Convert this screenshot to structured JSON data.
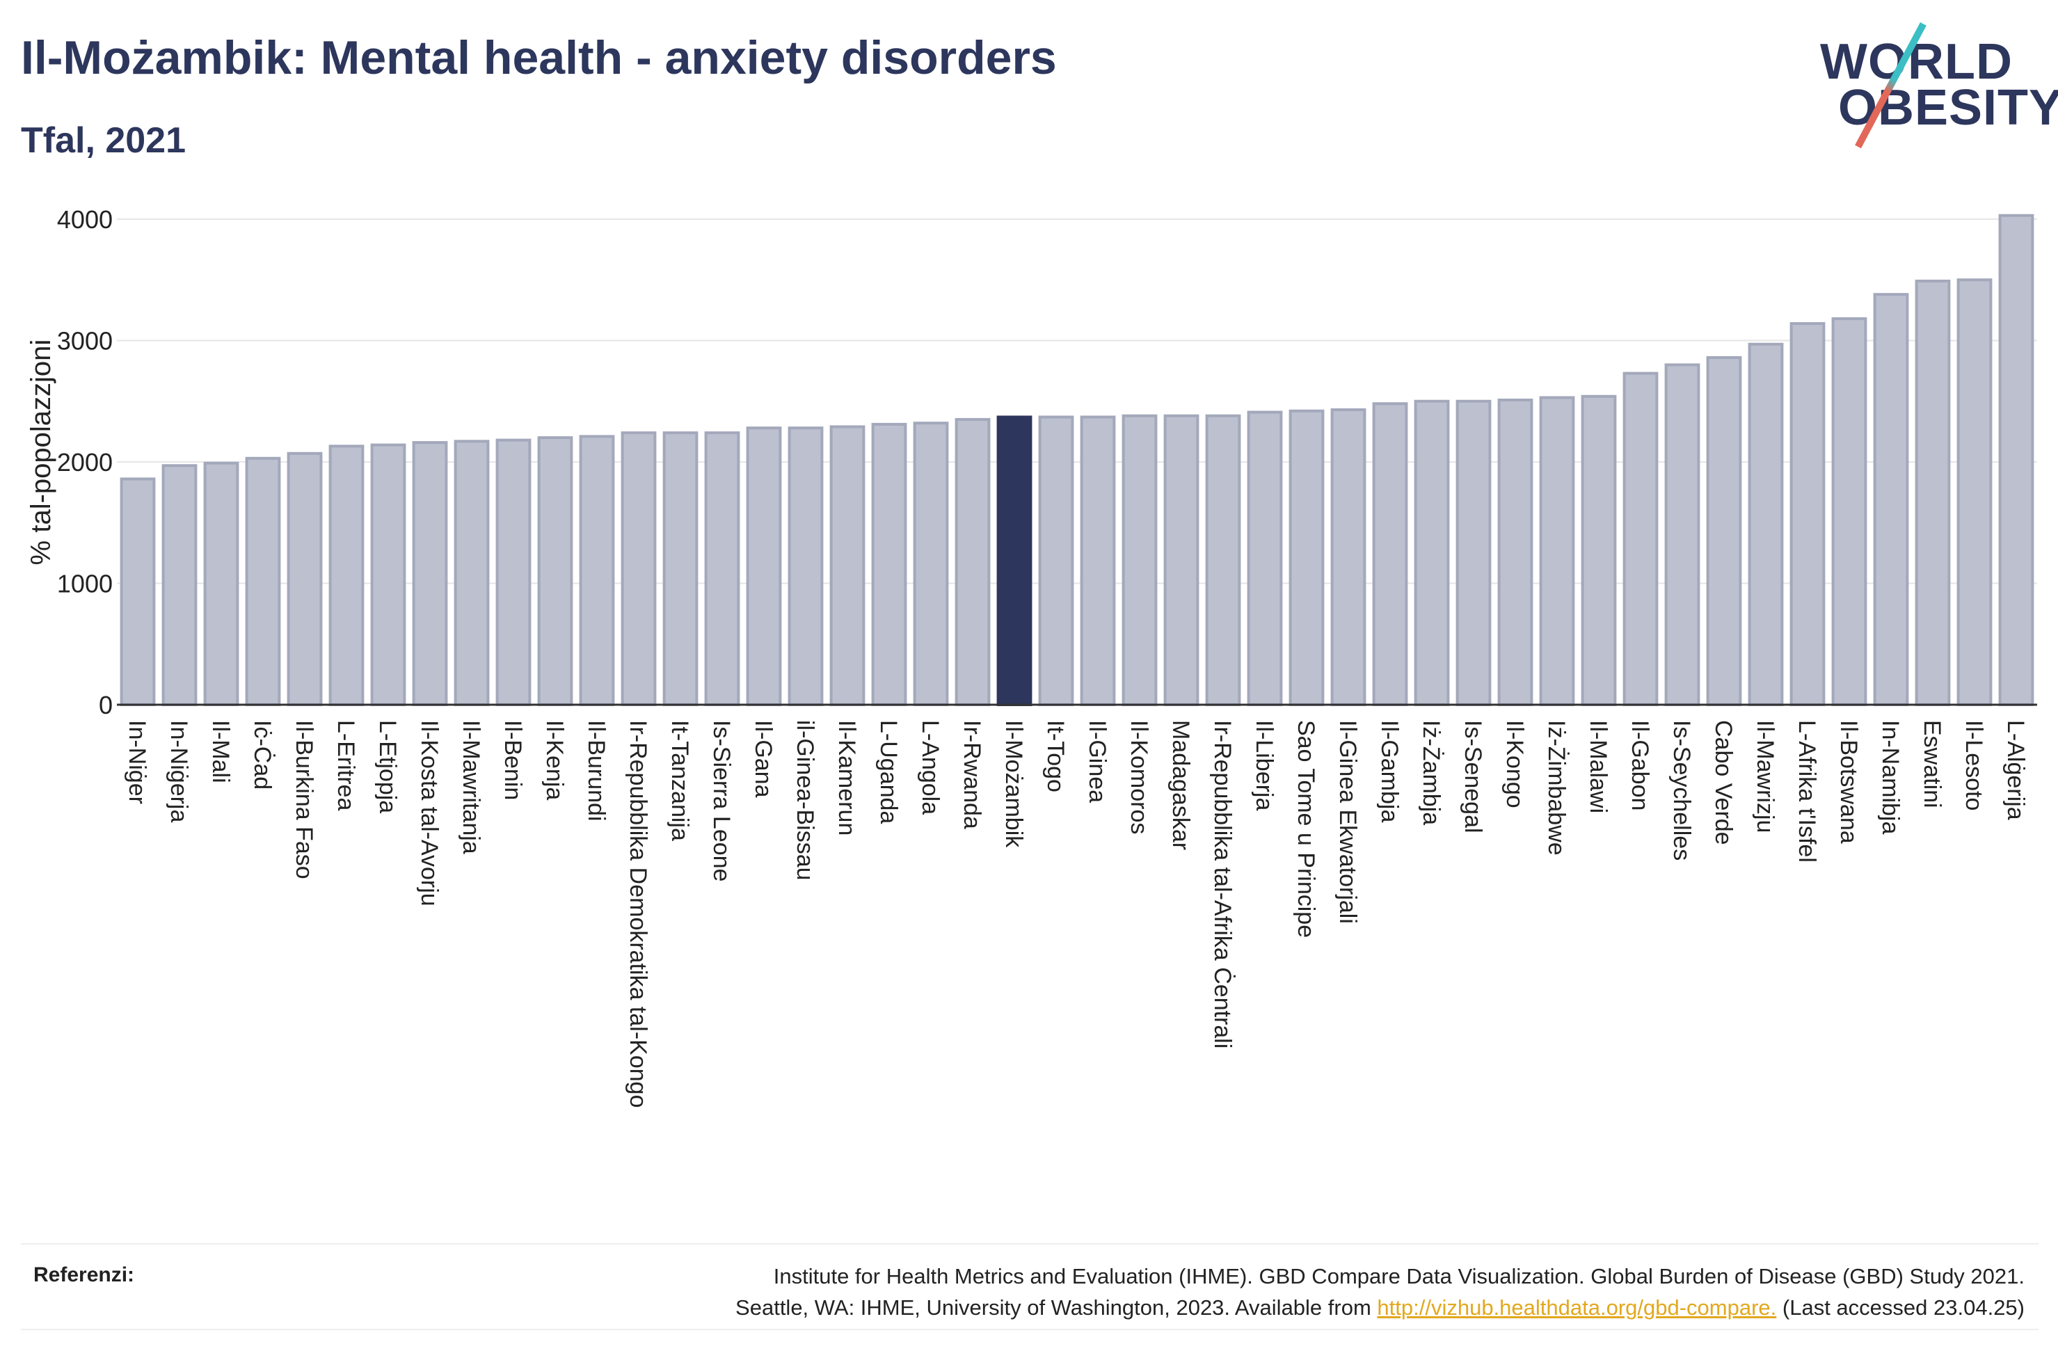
{
  "header": {
    "title": "Il-Możambik: Mental health - anxiety disorders",
    "subtitle": "Tfal, 2021"
  },
  "logo": {
    "line1": "WORLD",
    "line2": "OBESITY"
  },
  "colors": {
    "bar": "#bcc0cf",
    "bar_border": "#a3a8bb",
    "highlight": "#2d365c",
    "grid": "#e6e6e6",
    "text": "#2d365c"
  },
  "chart_data": {
    "type": "bar",
    "ylabel": "% tal-popolazzjoni",
    "ylim": [
      0,
      4200
    ],
    "yticks": [
      0,
      1000,
      2000,
      3000,
      4000
    ],
    "grid": true,
    "highlight": "Il-Możambik",
    "categories": [
      "In-Niġer",
      "In-Niġerja",
      "Il-Mali",
      "Iċ-Ċad",
      "Il-Burkina Faso",
      "L-Eritrea",
      "L-Etjopja",
      "Il-Kosta tal-Avorju",
      "Il-Mawritanja",
      "Il-Benin",
      "Il-Kenja",
      "Il-Burundi",
      "Ir-Repubblika Demokratika tal-Kongo",
      "It-Tanzanija",
      "Is-Sierra Leone",
      "Il-Gana",
      "il-Ginea-Bissau",
      "Il-Kamerun",
      "L-Uganda",
      "L-Angola",
      "Ir-Rwanda",
      "Il-Możambik",
      "It-Togo",
      "Il-Ginea",
      "Il-Komoros",
      "Madagaskar",
      "Ir-Repubblika tal-Afrika Ċentrali",
      "Il-Liberja",
      "Sao Tome u Principe",
      "Il-Ginea Ekwatorjali",
      "Il-Gambja",
      "Iż-Żambja",
      "Is-Senegal",
      "Il-Kongo",
      "Iż-Żimbabwe",
      "Il-Malawi",
      "Il-Gabon",
      "Is-Seychelles",
      "Cabo Verde",
      "Il-Mawrizju",
      "L-Afrika t'Isfel",
      "Il-Botswana",
      "In-Namibja",
      "Eswatini",
      "Il-Lesoto",
      "L-Alġerija"
    ],
    "values": [
      1860,
      1970,
      1990,
      2030,
      2070,
      2130,
      2140,
      2160,
      2170,
      2180,
      2200,
      2210,
      2240,
      2240,
      2240,
      2280,
      2280,
      2290,
      2310,
      2320,
      2350,
      2370,
      2370,
      2370,
      2380,
      2380,
      2380,
      2410,
      2420,
      2430,
      2480,
      2500,
      2500,
      2510,
      2530,
      2540,
      2730,
      2800,
      2860,
      2970,
      3140,
      3180,
      3380,
      3490,
      3500,
      4030
    ]
  },
  "references": {
    "label": "Referenzi:",
    "line1": "Institute for Health Metrics and Evaluation (IHME). GBD Compare Data Visualization. Global Burden of Disease (GBD) Study 2021.",
    "line2_prefix": "Seattle, WA: IHME, University of Washington, 2023. Available from ",
    "link": "http://vizhub.healthdata.org/gbd-compare.",
    "line2_suffix": " (Last accessed 23.04.25)"
  }
}
